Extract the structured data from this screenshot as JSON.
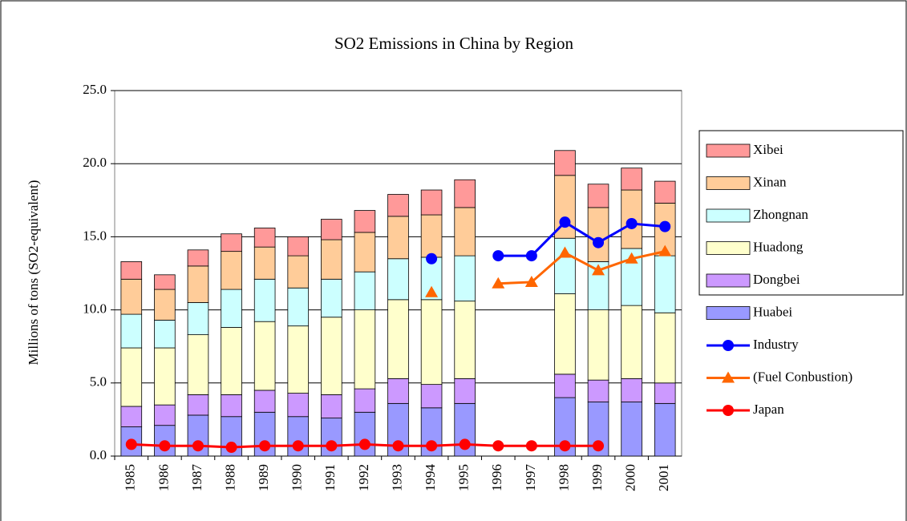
{
  "chart_data": {
    "type": "bar",
    "title": "SO2 Emissions in China by Region",
    "y_label": "Millions of tons (SO2-equivalent)",
    "categories": [
      "1985",
      "1986",
      "1987",
      "1988",
      "1989",
      "1990",
      "1991",
      "1992",
      "1993",
      "1994",
      "1995",
      "1996",
      "1997",
      "1998",
      "1999",
      "2000",
      "2001"
    ],
    "ylim": [
      0,
      25
    ],
    "yticks": [
      {
        "value": 0,
        "label": "0.0"
      },
      {
        "value": 5,
        "label": "5.0"
      },
      {
        "value": 10,
        "label": "10.0"
      },
      {
        "value": 15,
        "label": "15.0"
      },
      {
        "value": 20,
        "label": "20.0"
      },
      {
        "value": 25,
        "label": "25.0"
      }
    ],
    "grid": true,
    "stacked": true,
    "legend": "right",
    "series": [
      {
        "name": "Huabei",
        "type": "bar",
        "color": "#9999ff",
        "values": [
          2.0,
          2.1,
          2.8,
          2.7,
          3.0,
          2.7,
          2.6,
          3.0,
          3.6,
          3.3,
          3.6,
          null,
          null,
          4.0,
          3.7,
          3.7,
          3.6
        ]
      },
      {
        "name": "Dongbei",
        "type": "bar",
        "color": "#cc99ff",
        "values": [
          1.4,
          1.4,
          1.4,
          1.5,
          1.5,
          1.6,
          1.6,
          1.6,
          1.7,
          1.6,
          1.7,
          null,
          null,
          1.6,
          1.5,
          1.6,
          1.4
        ]
      },
      {
        "name": "Huadong",
        "type": "bar",
        "color": "#ffffcc",
        "values": [
          4.0,
          3.9,
          4.1,
          4.6,
          4.7,
          4.6,
          5.3,
          5.4,
          5.4,
          5.8,
          5.3,
          null,
          null,
          5.5,
          4.8,
          5.0,
          4.8
        ]
      },
      {
        "name": "Zhongnan",
        "type": "bar",
        "color": "#ccffff",
        "values": [
          2.3,
          1.9,
          2.2,
          2.6,
          2.9,
          2.6,
          2.6,
          2.6,
          2.8,
          2.9,
          3.1,
          null,
          null,
          3.8,
          3.3,
          3.9,
          3.9
        ]
      },
      {
        "name": "Xinan",
        "type": "bar",
        "color": "#ffcc99",
        "values": [
          2.4,
          2.1,
          2.5,
          2.6,
          2.2,
          2.2,
          2.7,
          2.7,
          2.9,
          2.9,
          3.3,
          null,
          null,
          4.3,
          3.7,
          4.0,
          3.6
        ]
      },
      {
        "name": "Xibei",
        "type": "bar",
        "color": "#ff9999",
        "values": [
          1.2,
          1.0,
          1.1,
          1.2,
          1.3,
          1.3,
          1.4,
          1.5,
          1.5,
          1.7,
          1.9,
          null,
          null,
          1.7,
          1.6,
          1.5,
          1.5
        ]
      },
      {
        "name": "Industry",
        "type": "line",
        "marker": "circle",
        "color": "#0000ff",
        "values": [
          null,
          null,
          null,
          null,
          null,
          null,
          null,
          null,
          null,
          13.5,
          null,
          13.7,
          13.7,
          16.0,
          14.6,
          15.9,
          15.7
        ]
      },
      {
        "name": "(Fuel Conbustion)",
        "type": "line",
        "marker": "triangle",
        "color": "#ff6600",
        "values": [
          null,
          null,
          null,
          null,
          null,
          null,
          null,
          null,
          null,
          11.2,
          null,
          11.8,
          11.9,
          13.9,
          12.7,
          13.5,
          14.0
        ]
      },
      {
        "name": "Japan",
        "type": "line",
        "marker": "circle",
        "color": "#ff0000",
        "values": [
          0.8,
          0.7,
          0.7,
          0.6,
          0.7,
          0.7,
          0.7,
          0.8,
          0.7,
          0.7,
          0.8,
          0.7,
          0.7,
          0.7,
          0.7,
          null,
          null
        ]
      }
    ]
  }
}
